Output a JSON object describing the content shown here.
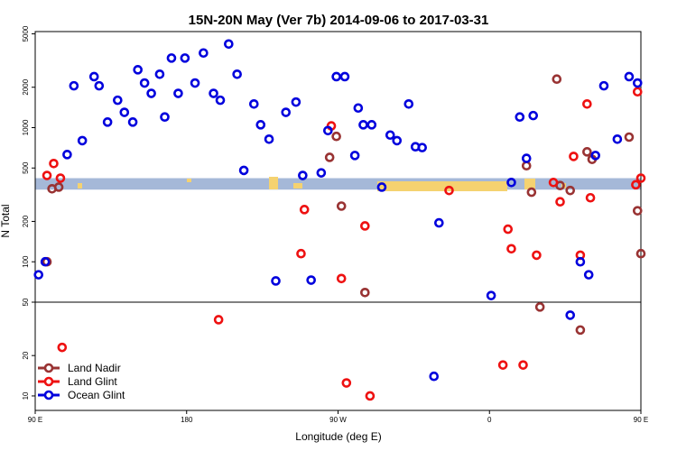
{
  "chart_data": {
    "type": "scatter",
    "title": "15N-20N May (Ver 7b)   2014-09-06 to 2017-03-31",
    "xlabel": "Longitude (deg E)",
    "ylabel": "N Total",
    "xscale": "linear",
    "yscale": "log",
    "xlim": [
      90,
      450
    ],
    "ylim": [
      7.8,
      5200
    ],
    "x_ticks": [
      {
        "value": 90,
        "label": "90 E"
      },
      {
        "value": 180,
        "label": "180"
      },
      {
        "value": 270,
        "label": "90 W"
      },
      {
        "value": 360,
        "label": "0"
      },
      {
        "value": 450,
        "label": "90 E"
      },
      {
        "value": 540,
        "label": "180"
      }
    ],
    "y_ticks": [
      {
        "value": 10,
        "label": "10"
      },
      {
        "value": 20,
        "label": "20"
      },
      {
        "value": 50,
        "label": "50"
      },
      {
        "value": 100,
        "label": "100"
      },
      {
        "value": 200,
        "label": "200"
      },
      {
        "value": 500,
        "label": "500"
      },
      {
        "value": 1000,
        "label": "1000"
      },
      {
        "value": 2000,
        "label": "2000"
      },
      {
        "value": 5000,
        "label": "5000"
      }
    ],
    "reference_line": 50,
    "band": {
      "ymin": 345,
      "ymax": 420,
      "color": "#a5b8d8"
    },
    "land_color": "#f5d270",
    "legend_position": "bottom-left",
    "series": [
      {
        "name": "Land Nadir",
        "color": "#993333",
        "points": [
          [
            100,
            350
          ],
          [
            104,
            360
          ],
          [
            97,
            100
          ],
          [
            265,
            600
          ],
          [
            269,
            860
          ],
          [
            272,
            260
          ],
          [
            286,
            59
          ],
          [
            382,
            520
          ],
          [
            385,
            330
          ],
          [
            390,
            46
          ],
          [
            400,
            2300
          ],
          [
            402,
            370
          ],
          [
            408,
            340
          ],
          [
            414,
            31
          ],
          [
            418,
            660
          ],
          [
            421,
            580
          ],
          [
            443,
            850
          ],
          [
            448,
            240
          ],
          [
            450,
            115
          ],
          [
            472,
            36
          ],
          [
            485,
            340
          ]
        ]
      },
      {
        "name": "Land Glint",
        "color": "#ee1111",
        "points": [
          [
            97,
            440
          ],
          [
            101,
            540
          ],
          [
            105,
            420
          ],
          [
            106,
            23
          ],
          [
            199,
            37
          ],
          [
            248,
            115
          ],
          [
            250,
            245
          ],
          [
            266,
            1030
          ],
          [
            272,
            75
          ],
          [
            286,
            185
          ],
          [
            289,
            10
          ],
          [
            275,
            12.5
          ],
          [
            336,
            340
          ],
          [
            368,
            17
          ],
          [
            371,
            175
          ],
          [
            373,
            125
          ],
          [
            380,
            17
          ],
          [
            388,
            112
          ],
          [
            398,
            390
          ],
          [
            402,
            280
          ],
          [
            410,
            610
          ],
          [
            414,
            112
          ],
          [
            418,
            1500
          ],
          [
            420,
            300
          ],
          [
            447,
            375
          ],
          [
            448,
            1850
          ],
          [
            450,
            420
          ],
          [
            461,
            440
          ],
          [
            465,
            540
          ],
          [
            470,
            420
          ],
          [
            474,
            23
          ]
        ]
      },
      {
        "name": "Ocean Glint",
        "color": "#0000dd",
        "points": [
          [
            92,
            80
          ],
          [
            96,
            100
          ],
          [
            109,
            630
          ],
          [
            113,
            2050
          ],
          [
            118,
            800
          ],
          [
            125,
            2400
          ],
          [
            128,
            2050
          ],
          [
            133,
            1100
          ],
          [
            139,
            1600
          ],
          [
            143,
            1300
          ],
          [
            148,
            1100
          ],
          [
            151,
            2700
          ],
          [
            155,
            2150
          ],
          [
            159,
            1800
          ],
          [
            164,
            2500
          ],
          [
            167,
            1200
          ],
          [
            171,
            3300
          ],
          [
            175,
            1800
          ],
          [
            179,
            3300
          ],
          [
            185,
            2150
          ],
          [
            190,
            3600
          ],
          [
            196,
            1800
          ],
          [
            200,
            1600
          ],
          [
            205,
            4200
          ],
          [
            210,
            2500
          ],
          [
            214,
            480
          ],
          [
            220,
            1500
          ],
          [
            224,
            1050
          ],
          [
            229,
            820
          ],
          [
            233,
            72
          ],
          [
            239,
            1300
          ],
          [
            245,
            1550
          ],
          [
            249,
            440
          ],
          [
            254,
            73
          ],
          [
            260,
            460
          ],
          [
            264,
            950
          ],
          [
            269,
            2400
          ],
          [
            274,
            2400
          ],
          [
            280,
            620
          ],
          [
            282,
            1400
          ],
          [
            285,
            1050
          ],
          [
            290,
            1050
          ],
          [
            296,
            360
          ],
          [
            301,
            880
          ],
          [
            305,
            800
          ],
          [
            312,
            1500
          ],
          [
            316,
            720
          ],
          [
            320,
            710
          ],
          [
            327,
            14
          ],
          [
            330,
            195
          ],
          [
            361,
            56
          ],
          [
            373,
            390
          ],
          [
            378,
            1200
          ],
          [
            382,
            590
          ],
          [
            386,
            1230
          ],
          [
            408,
            40
          ],
          [
            414,
            100
          ],
          [
            419,
            80
          ],
          [
            423,
            620
          ],
          [
            428,
            2050
          ],
          [
            436,
            820
          ],
          [
            443,
            2400
          ],
          [
            448,
            2150
          ],
          [
            452,
            1150
          ],
          [
            457,
            1650
          ],
          [
            460,
            1350
          ],
          [
            464,
            1100
          ],
          [
            468,
            2700
          ],
          [
            473,
            2250
          ],
          [
            478,
            1800
          ],
          [
            482,
            2400
          ],
          [
            486,
            1200
          ],
          [
            490,
            3300
          ]
        ]
      }
    ]
  }
}
